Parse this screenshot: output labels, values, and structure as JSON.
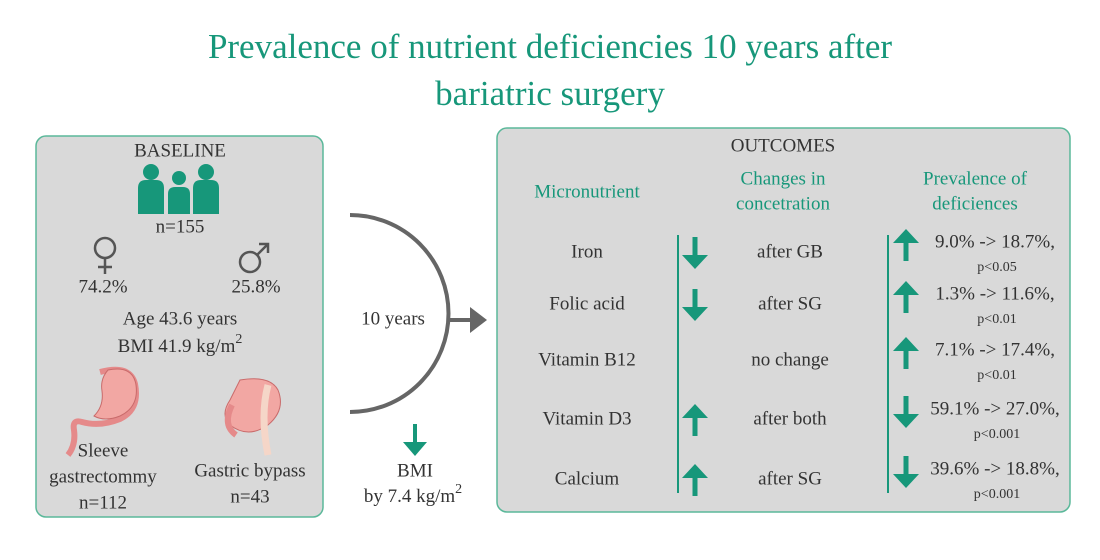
{
  "title": [
    "Prevalence of nutrient deficiencies 10 years after",
    "bariatric surgery"
  ],
  "baseline": {
    "heading": "BASELINE",
    "n": "n=155",
    "female": "74.2%",
    "male": "25.8%",
    "age": "Age 43.6 years",
    "bmi": "BMI 41.9 kg/m",
    "bmi_sup": "2",
    "sleeve": {
      "label": [
        "Sleeve",
        "gastrectommy"
      ],
      "n": "n=112"
    },
    "bypass": {
      "label": [
        "Gastric bypass"
      ],
      "n": "n=43"
    }
  },
  "middle": {
    "period": "10 years",
    "bmi": "BMI",
    "bmi_change": "by 7.4 kg/m",
    "bmi_sup": "2"
  },
  "outcomes": {
    "heading": "OUTCOMES",
    "columns": [
      [
        "Micronutrient"
      ],
      [
        "Changes in",
        "concetration"
      ],
      [
        "Prevalence of",
        "deficiences"
      ]
    ],
    "rows": [
      {
        "name": "Iron",
        "change_dir": "down",
        "change": "after GB",
        "prev_dir": "up",
        "prevalence": "9.0% -> 18.7%,",
        "p": "p<0.05"
      },
      {
        "name": "Folic acid",
        "change_dir": "down",
        "change": "after SG",
        "prev_dir": "up",
        "prevalence": "1.3% -> 11.6%,",
        "p": "p<0.01"
      },
      {
        "name": "Vitamin B12",
        "change_dir": "none",
        "change": "no change",
        "prev_dir": "up",
        "prevalence": "7.1% -> 17.4%,",
        "p": "p<0.01"
      },
      {
        "name": "Vitamin D3",
        "change_dir": "up",
        "change": "after both",
        "prev_dir": "down",
        "prevalence": "59.1% -> 27.0%,",
        "p": "p<0.001"
      },
      {
        "name": "Calcium",
        "change_dir": "up",
        "change": "after SG",
        "prev_dir": "down",
        "prevalence": "39.6% -> 18.8%,",
        "p": "p<0.001"
      }
    ]
  }
}
